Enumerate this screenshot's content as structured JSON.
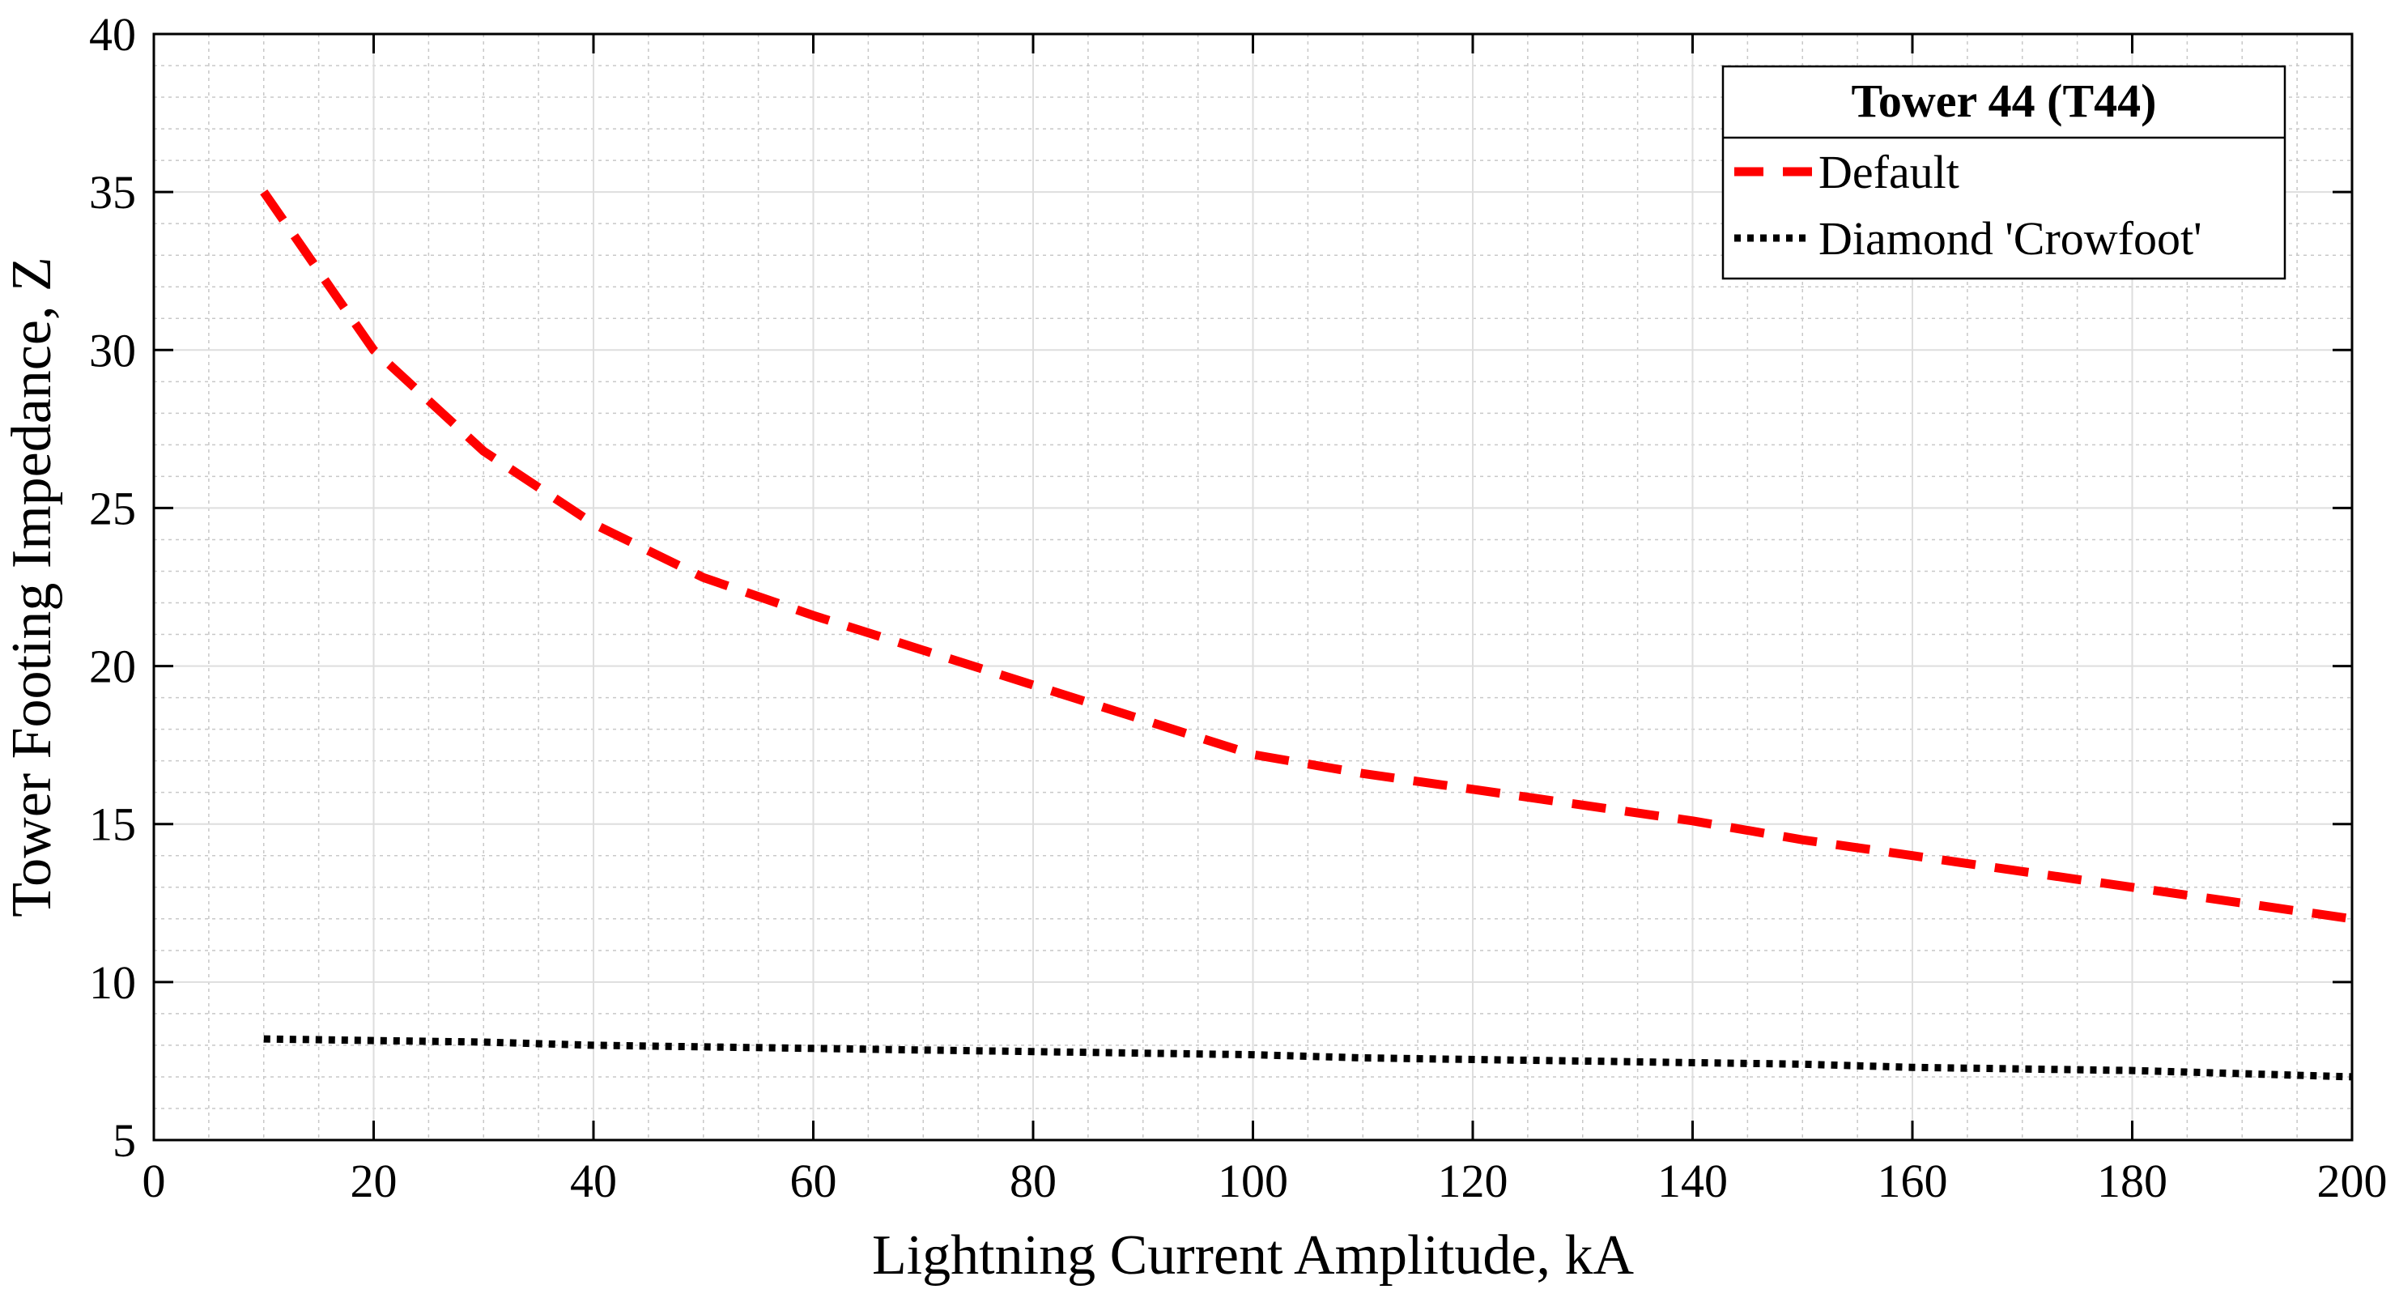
{
  "chart_data": {
    "type": "line",
    "title": "",
    "xlabel": "Lightning Current Amplitude, kA",
    "ylabel": "Tower Footing Impedance, Z",
    "xlim": [
      0,
      200
    ],
    "ylim": [
      5,
      40
    ],
    "xticks": [
      0,
      20,
      40,
      60,
      80,
      100,
      120,
      140,
      160,
      180,
      200
    ],
    "yticks": [
      5,
      10,
      15,
      20,
      25,
      30,
      35,
      40
    ],
    "xtick_labels": [
      "0",
      "20",
      "40",
      "60",
      "80",
      "100",
      "120",
      "140",
      "160",
      "180",
      "200"
    ],
    "ytick_labels": [
      "5",
      "10",
      "15",
      "20",
      "25",
      "30",
      "35",
      "40"
    ],
    "x_minor_step": 5,
    "y_minor_step": 1,
    "grid": true,
    "legend": {
      "title": "Tower 44 (T44)",
      "placement": "top-right"
    },
    "series": [
      {
        "name": "Default",
        "color": "#ff0000",
        "style": "dashed",
        "x": [
          10,
          20,
          30,
          40,
          50,
          60,
          70,
          80,
          90,
          100,
          110,
          120,
          130,
          140,
          150,
          160,
          170,
          180,
          190,
          200
        ],
        "values": [
          35.0,
          30.0,
          26.8,
          24.5,
          22.8,
          21.6,
          20.5,
          19.4,
          18.3,
          17.2,
          16.6,
          16.1,
          15.6,
          15.1,
          14.5,
          14.0,
          13.5,
          13.0,
          12.5,
          12.0
        ]
      },
      {
        "name": "Diamond 'Crowfoot'",
        "color": "#000000",
        "style": "dotted",
        "x": [
          10,
          20,
          30,
          40,
          50,
          60,
          70,
          80,
          90,
          100,
          110,
          120,
          130,
          140,
          150,
          160,
          170,
          180,
          190,
          200
        ],
        "values": [
          8.2,
          8.15,
          8.1,
          8.0,
          7.95,
          7.9,
          7.85,
          7.8,
          7.75,
          7.7,
          7.6,
          7.55,
          7.5,
          7.45,
          7.4,
          7.3,
          7.25,
          7.2,
          7.1,
          7.0
        ]
      }
    ]
  }
}
